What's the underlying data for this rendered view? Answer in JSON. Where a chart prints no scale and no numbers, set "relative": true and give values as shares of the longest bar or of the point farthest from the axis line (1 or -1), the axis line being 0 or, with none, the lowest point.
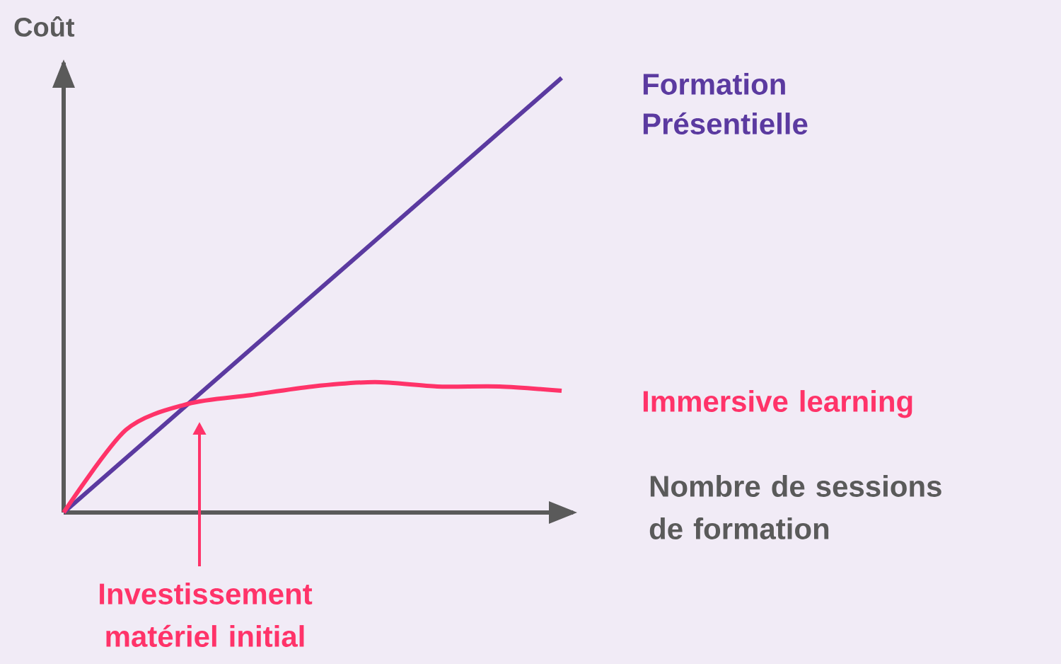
{
  "chart_data": {
    "type": "line",
    "relative": true,
    "xlabel": "Nombre de  sessions de formation",
    "ylabel": "Coût",
    "categories": [
      null,
      null,
      null,
      null,
      null,
      null,
      null,
      null,
      null
    ],
    "series": [
      {
        "name": "Formation Présentielle",
        "color": "#5b3aa0",
        "values": [
          0,
          0.125,
          0.25,
          0.375,
          0.5,
          0.625,
          0.75,
          0.875,
          1
        ]
      },
      {
        "name": "Immersive learning",
        "color": "#ff3369",
        "values": [
          0,
          0.19,
          0.25,
          0.27,
          0.29,
          0.3,
          0.29,
          0.29,
          0.28
        ]
      }
    ],
    "annotations": [
      "Investissement matériel initial"
    ]
  }
}
